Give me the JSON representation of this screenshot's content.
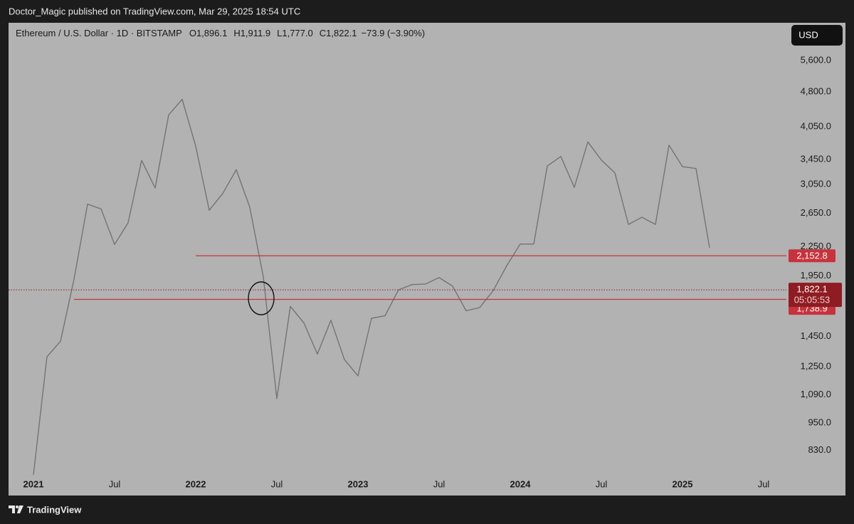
{
  "header": {
    "text": "Doctor_Magic published on TradingView.com, Mar 29, 2025 18:54 UTC"
  },
  "footer": {
    "brand": "TradingView"
  },
  "chart_data": {
    "type": "line",
    "title": "Ethereum / U.S. Dollar · 1D · BITSTAMP",
    "ohlc": [
      {
        "name": "O",
        "value": 1896.1,
        "label": "1,896.1"
      },
      {
        "name": "H",
        "value": 1911.9,
        "label": "1,911.9"
      },
      {
        "name": "L",
        "value": 1777.0,
        "label": "1,777.0"
      },
      {
        "name": "C",
        "value": 1822.1,
        "label": "1,822.1"
      }
    ],
    "change": {
      "value": -73.9,
      "label": "−73.9 (−3.90%)"
    },
    "currency": "USD",
    "log_scale": true,
    "x": [
      "2021-01",
      "2021-02",
      "2021-03",
      "2021-04",
      "2021-05",
      "2021-06",
      "2021-07",
      "2021-08",
      "2021-09",
      "2021-10",
      "2021-11",
      "2021-12",
      "2022-01",
      "2022-02",
      "2022-03",
      "2022-04",
      "2022-05",
      "2022-06",
      "2022-07",
      "2022-08",
      "2022-09",
      "2022-10",
      "2022-11",
      "2022-12",
      "2023-01",
      "2023-02",
      "2023-03",
      "2023-04",
      "2023-05",
      "2023-06",
      "2023-07",
      "2023-08",
      "2023-09",
      "2023-10",
      "2023-11",
      "2023-12",
      "2024-01",
      "2024-02",
      "2024-03",
      "2024-04",
      "2024-05",
      "2024-06",
      "2024-07",
      "2024-08",
      "2024-09",
      "2024-10",
      "2024-11",
      "2024-12",
      "2025-01",
      "2025-02",
      "2025-03"
    ],
    "series": [
      {
        "name": "ETH/USD",
        "color": "#747474",
        "values": [
          737,
          1313,
          1417,
          1918,
          2772,
          2707,
          2275,
          2530,
          3434,
          3000,
          4290,
          4630,
          3680,
          2690,
          2920,
          3280,
          2730,
          1940,
          1070,
          1680,
          1550,
          1330,
          1570,
          1295,
          1196,
          1585,
          1605,
          1822,
          1870,
          1875,
          1935,
          1855,
          1645,
          1670,
          1815,
          2050,
          2280,
          2280,
          3340,
          3500,
          3010,
          3760,
          3440,
          3230,
          2510,
          2600,
          2510,
          3700,
          3330,
          3300,
          2240
        ]
      }
    ],
    "xlim": [
      "2020-11",
      "2025-09"
    ],
    "xticks": [
      {
        "value": "2021-01",
        "label": "2021"
      },
      {
        "value": "2021-07",
        "label": "Jul"
      },
      {
        "value": "2022-01",
        "label": "2022"
      },
      {
        "value": "2022-07",
        "label": "Jul"
      },
      {
        "value": "2023-01",
        "label": "2023"
      },
      {
        "value": "2023-07",
        "label": "Jul"
      },
      {
        "value": "2024-01",
        "label": "2024"
      },
      {
        "value": "2024-07",
        "label": "Jul"
      },
      {
        "value": "2025-01",
        "label": "2025"
      },
      {
        "value": "2025-07",
        "label": "Jul"
      }
    ],
    "ylim": [
      734,
      6735
    ],
    "yticks": [
      {
        "value": 830,
        "label": "830.0"
      },
      {
        "value": 950,
        "label": "950.0"
      },
      {
        "value": 1090,
        "label": "1,090.0"
      },
      {
        "value": 1250,
        "label": "1,250.0"
      },
      {
        "value": 1450,
        "label": "1,450.0"
      },
      {
        "value": 1950,
        "label": "1,950.0"
      },
      {
        "value": 2250,
        "label": "2,250.0"
      },
      {
        "value": 2650,
        "label": "2,650.0"
      },
      {
        "value": 3050,
        "label": "3,050.0"
      },
      {
        "value": 3450,
        "label": "3,450.0"
      },
      {
        "value": 4050,
        "label": "4,050.0"
      },
      {
        "value": 4800,
        "label": "4,800.0"
      },
      {
        "value": 5600,
        "label": "5,600.0"
      }
    ],
    "levels": [
      {
        "value": 2152.8,
        "label": "2,152.8",
        "start": "2022-01",
        "color": "#c8323c"
      },
      {
        "value": 1738.9,
        "label": "1,738.9",
        "start": "2021-04",
        "color": "#c8323c"
      }
    ],
    "last_price": {
      "value": 1822.1,
      "label": "1,822.1",
      "countdown": "05:05:53",
      "color": "#8e1c22"
    }
  }
}
